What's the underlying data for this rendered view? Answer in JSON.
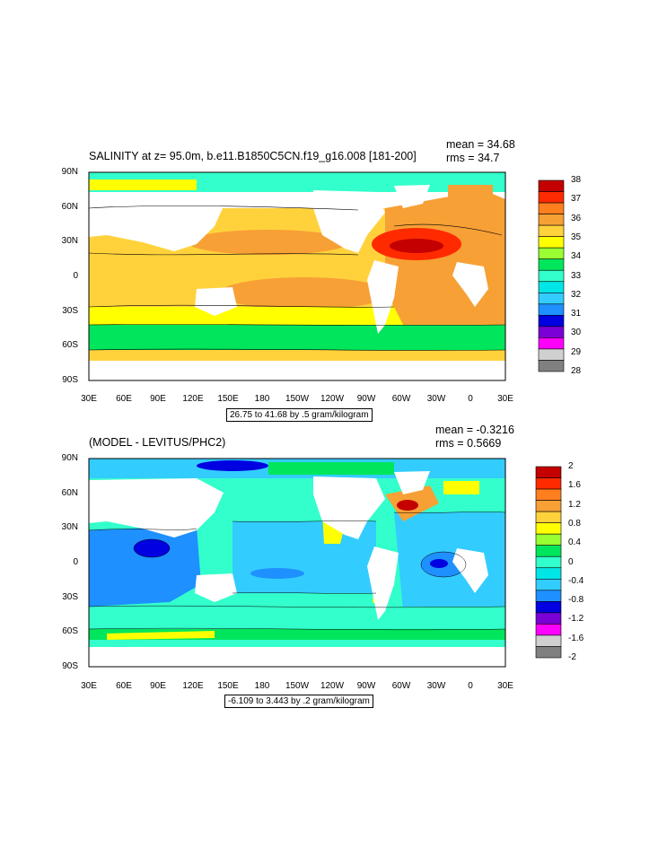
{
  "panels": [
    {
      "id": "salinity",
      "title": "SALINITY at z=  95.0m, b.e11.B1850C5CN.f19_g16.008 [181-200]",
      "mean": "mean = 34.68",
      "rms": "rms = 34.7",
      "caption": "26.75 to 41.68 by .5 gram/kilogram",
      "lat_labels": [
        "90N",
        "60N",
        "30N",
        "0",
        "30S",
        "60S",
        "90S"
      ],
      "lon_labels": [
        "30E",
        "60E",
        "90E",
        "120E",
        "150E",
        "180",
        "150W",
        "120W",
        "90W",
        "60W",
        "30W",
        "0",
        "30E"
      ],
      "colorbar": {
        "labels": [
          "38",
          "37",
          "36",
          "35",
          "34",
          "33",
          "32",
          "31",
          "30",
          "29",
          "28"
        ],
        "colors": [
          "#c40000",
          "#ff2a00",
          "#ff7f1f",
          "#f7a035",
          "#ffd23c",
          "#ffff00",
          "#99ff33",
          "#00e65c",
          "#33ffcc",
          "#00e6e6",
          "#33ccff",
          "#1e90ff",
          "#0000e0",
          "#7b00d6",
          "#ff00ff",
          "#d0d0d0",
          "#808080"
        ]
      }
    },
    {
      "id": "difference",
      "title": "(MODEL - LEVITUS/PHC2)",
      "mean": "mean = -0.3216",
      "rms": "rms = 0.5669",
      "caption": "-6.109 to 3.443 by .2 gram/kilogram",
      "lat_labels": [
        "90N",
        "60N",
        "30N",
        "0",
        "30S",
        "60S",
        "90S"
      ],
      "lon_labels": [
        "30E",
        "60E",
        "90E",
        "120E",
        "150E",
        "180",
        "150W",
        "120W",
        "90W",
        "60W",
        "30W",
        "0",
        "30E"
      ],
      "colorbar": {
        "labels": [
          "2",
          "1.6",
          "1.2",
          "0.8",
          "0.4",
          "0",
          "-0.4",
          "-0.8",
          "-1.2",
          "-1.6",
          "-2"
        ],
        "colors": [
          "#c40000",
          "#ff2a00",
          "#ff7f1f",
          "#f7a035",
          "#ffd23c",
          "#ffff00",
          "#99ff33",
          "#00e65c",
          "#33ffcc",
          "#00e6e6",
          "#33ccff",
          "#1e90ff",
          "#0000e0",
          "#7b00d6",
          "#ff00ff",
          "#d0d0d0",
          "#808080"
        ]
      }
    }
  ],
  "map_colors": {
    "land": "#ffffff",
    "salinity_bands": [
      "#00e65c",
      "#33ffcc",
      "#ffff00",
      "#ffd23c",
      "#f7a035",
      "#ff7f1f",
      "#c40000"
    ],
    "difference_bands": [
      "#33ccff",
      "#33ffcc",
      "#1e90ff",
      "#00e65c",
      "#ffff00",
      "#f7a035",
      "#c40000",
      "#0000e0"
    ]
  }
}
